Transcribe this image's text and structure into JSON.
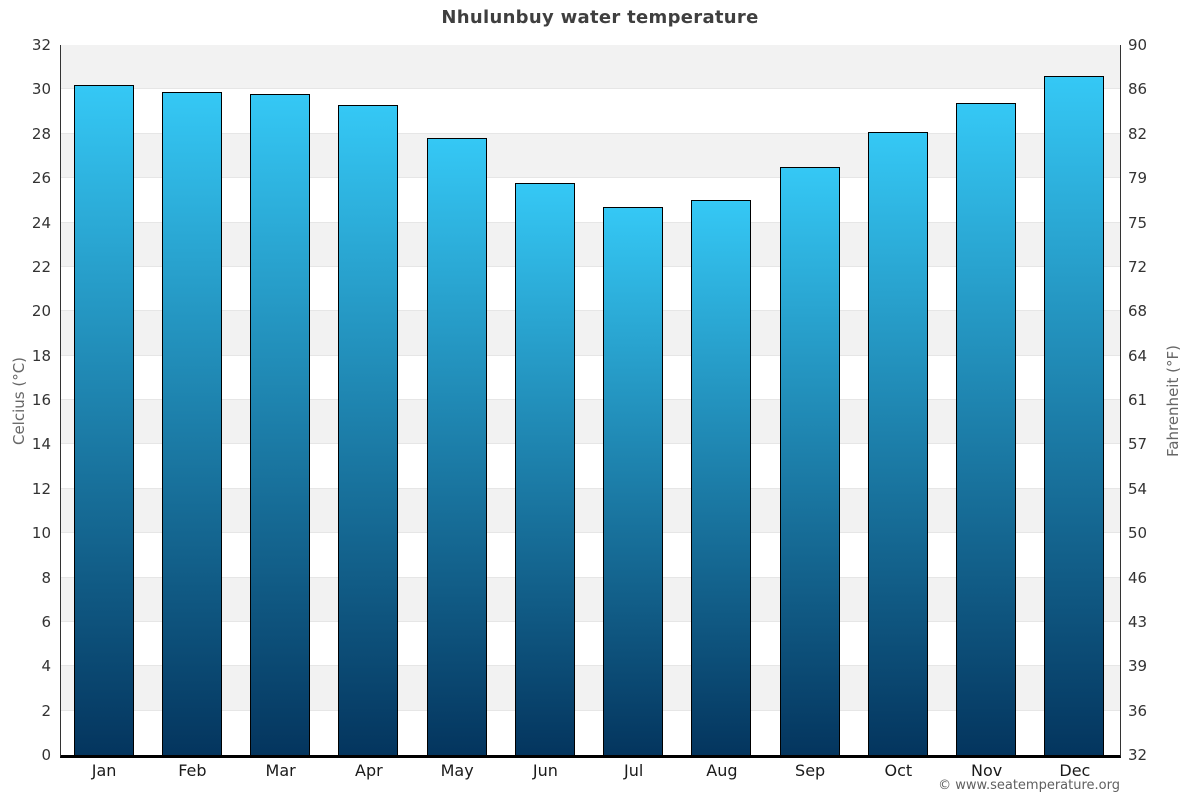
{
  "chart_data": {
    "type": "bar",
    "title": "Nhulunbuy water temperature",
    "ylabel_left": "Celcius (°C)",
    "ylabel_right": "Fahrenheit (°F)",
    "categories": [
      "Jan",
      "Feb",
      "Mar",
      "Apr",
      "May",
      "Jun",
      "Jul",
      "Aug",
      "Sep",
      "Oct",
      "Nov",
      "Dec"
    ],
    "values": [
      30.2,
      29.9,
      29.8,
      29.3,
      27.8,
      25.8,
      24.7,
      25.0,
      26.5,
      28.1,
      29.4,
      30.6
    ],
    "ylim": [
      0,
      32
    ],
    "celsius_ticks": [
      32,
      30,
      28,
      26,
      24,
      22,
      20,
      18,
      16,
      14,
      12,
      10,
      8,
      6,
      4,
      2,
      0
    ],
    "fahrenheit_ticks": [
      90,
      86,
      82,
      79,
      75,
      72,
      68,
      64,
      61,
      57,
      54,
      50,
      46,
      43,
      39,
      36,
      32
    ],
    "legend": "none",
    "grid": "alternating-horizontal-bands"
  },
  "colors": {
    "bar_top": "#35c8f5",
    "bar_bottom": "#04355e",
    "bar_border": "#000000",
    "band_gray": "#f2f2f2",
    "band_white": "#ffffff",
    "gridline": "#e6e6e6",
    "axis_line": "#333333",
    "bottom_axis_line": "#000000",
    "title_color": "#3f3f3f",
    "tick_label_color": "#333333",
    "axis_title_color": "#666666",
    "footer_color": "#606060"
  },
  "footer": {
    "copyright": "© www.seatemperature.org"
  }
}
